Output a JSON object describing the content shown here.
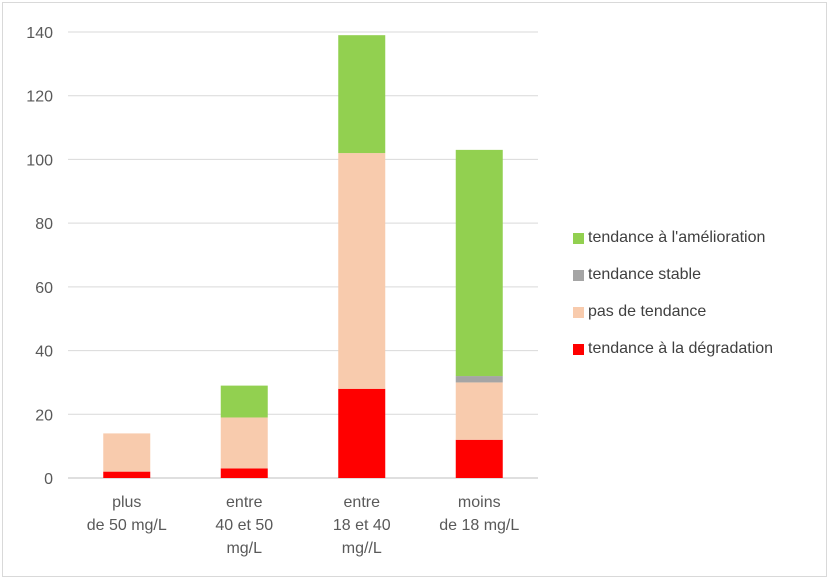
{
  "chart_data": {
    "type": "bar",
    "stacked": true,
    "categories": [
      [
        "plus",
        "de 50 mg/L"
      ],
      [
        "entre",
        "40 et 50",
        "mg/L"
      ],
      [
        "entre",
        "18 et 40",
        "mg//L"
      ],
      [
        "moins",
        "de 18 mg/L"
      ]
    ],
    "series": [
      {
        "name": "tendance à la dégradation",
        "color": "#ff0000",
        "values": [
          2,
          3,
          28,
          12
        ]
      },
      {
        "name": "pas de tendance",
        "color": "#f8cbad",
        "values": [
          12,
          16,
          74,
          18
        ]
      },
      {
        "name": "tendance stable",
        "color": "#a5a5a5",
        "values": [
          0,
          0,
          0,
          2
        ]
      },
      {
        "name": "tendance à l'amélioration",
        "color": "#92d050",
        "values": [
          0,
          10,
          37,
          71
        ]
      }
    ],
    "ylim": [
      0,
      140
    ],
    "yticks": [
      0,
      20,
      40,
      60,
      80,
      100,
      120,
      140
    ],
    "grid": true,
    "legend_position": "right",
    "legend_order": [
      "tendance à l'amélioration",
      "tendance stable",
      "pas de tendance",
      "tendance à la dégradation"
    ]
  }
}
